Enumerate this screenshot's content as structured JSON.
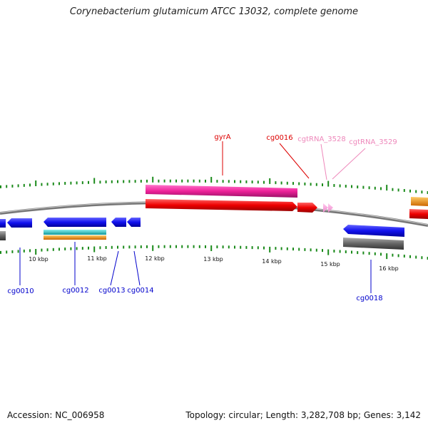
{
  "title": "Corynebacterium glutamicum ATCC 13032, complete genome",
  "footer": {
    "accession": "Accession: NC_006958",
    "summary": "Topology: circular; Length: 3,282,708 bp; Genes: 3,142"
  },
  "colors": {
    "forward_gene": "#ff0000",
    "pink_feature": "#ff3399",
    "trna": "#ffaadd",
    "reverse_gene": "#1a1aff",
    "gray_feature": "#666666",
    "cyan_feature": "#22cccc",
    "orange_feature": "#ff9900",
    "tick": "#1a8a1a",
    "top_labels": "#dd0000",
    "trna_labels": "#ee88bb",
    "bottom_labels": "#0000cc"
  },
  "ruler": {
    "labels": [
      "10 kbp",
      "11 kbp",
      "12 kbp",
      "13 kbp",
      "14 kbp",
      "15 kbp",
      "16 kbp"
    ]
  },
  "top_labels": [
    "gyrA",
    "cg0016",
    "cgtRNA_3528",
    "cgtRNA_3529"
  ],
  "bottom_labels": [
    "cg0010",
    "cg0012",
    "cg0013",
    "cg0014",
    "cg0018"
  ]
}
